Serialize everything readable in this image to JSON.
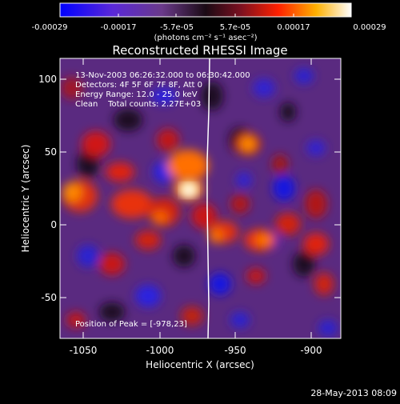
{
  "colorbar": {
    "ticks": [
      "-0.00029",
      "-0.00017",
      "-5.7e-05",
      "5.7e-05",
      "0.00017",
      "0.00029"
    ],
    "unit_label": "(photons cm⁻² s⁻¹ asec⁻²)",
    "colors": [
      "#0000ff",
      "#6a2bd0",
      "#3b1f40",
      "#000000",
      "#6a1020",
      "#ff2200",
      "#ffcc00",
      "#ffffff"
    ]
  },
  "plot": {
    "title": "Reconstructed RHESSI Image",
    "xlabel": "Heliocentric X (arcsec)",
    "ylabel": "Heliocentric Y (arcsec)",
    "xticks": [
      "-1050",
      "-1000",
      "-950",
      "-900"
    ],
    "yticks": [
      "100",
      "50",
      "0",
      "-50"
    ],
    "info_lines": [
      "13-Nov-2003 06:26:32.000 to 06:30:42.000",
      "Detectors: 4F 5F 6F 7F 8F, Att 0",
      "Energy Range: 12.0 - 25.0 keV",
      "Clean    Total counts: 2.27E+03"
    ],
    "peak_label": "Position of Peak = [-978,23]"
  },
  "footer": {
    "timestamp": "28-May-2013 08:09"
  }
}
